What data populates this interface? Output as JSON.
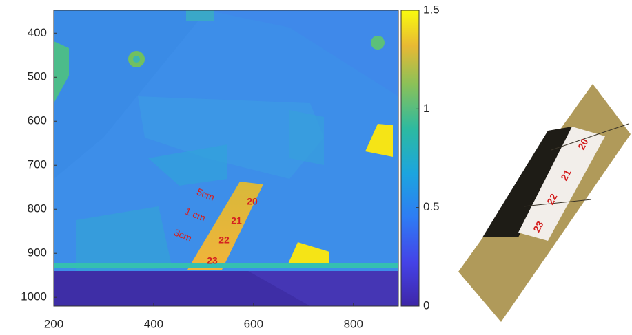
{
  "chart_data": {
    "type": "heatmap",
    "xlim": [
      200,
      890
    ],
    "xticks": [
      200,
      400,
      600,
      800
    ],
    "ylim": [
      1020,
      348
    ],
    "yticks": [
      400,
      500,
      600,
      700,
      800,
      900,
      1000
    ],
    "colorbar": {
      "lim": [
        0,
        1.5
      ],
      "ticks": [
        0,
        0.5,
        1,
        1.5
      ]
    },
    "annotations": [
      "5cm",
      "1 cm",
      "3cm",
      "20",
      "21",
      "22",
      "23"
    ]
  },
  "photo_labels": [
    "20",
    "21",
    "22",
    "23"
  ]
}
